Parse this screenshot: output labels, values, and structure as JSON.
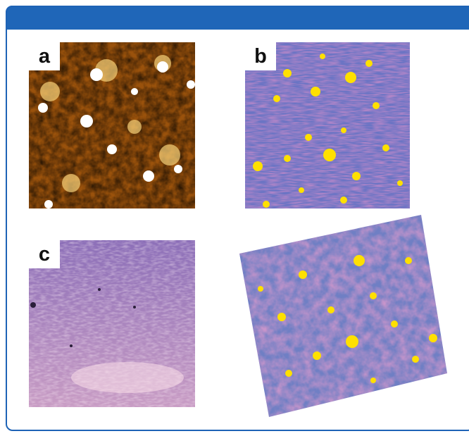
{
  "figure": {
    "panels": [
      {
        "id": "a",
        "label": "a",
        "colormap": "afm-gold"
      },
      {
        "id": "b",
        "label": "b",
        "colormap": "magenta-blue-yellow"
      },
      {
        "id": "c",
        "label": "c",
        "colormap": "lavender-pink"
      },
      {
        "id": "d",
        "label": "",
        "colormap": "3d-rendering"
      }
    ],
    "colors": {
      "frame": "#1e63b6",
      "header": "#1f66b8",
      "gold_dark": "#3c1b00",
      "gold_mid": "#b86a12",
      "gold_bright": "#ffffff",
      "magenta": "#d84a96",
      "blue": "#6a74c4",
      "yellow": "#ffe000",
      "lavender": "#a986c4",
      "pink": "#f2c4d8"
    }
  }
}
